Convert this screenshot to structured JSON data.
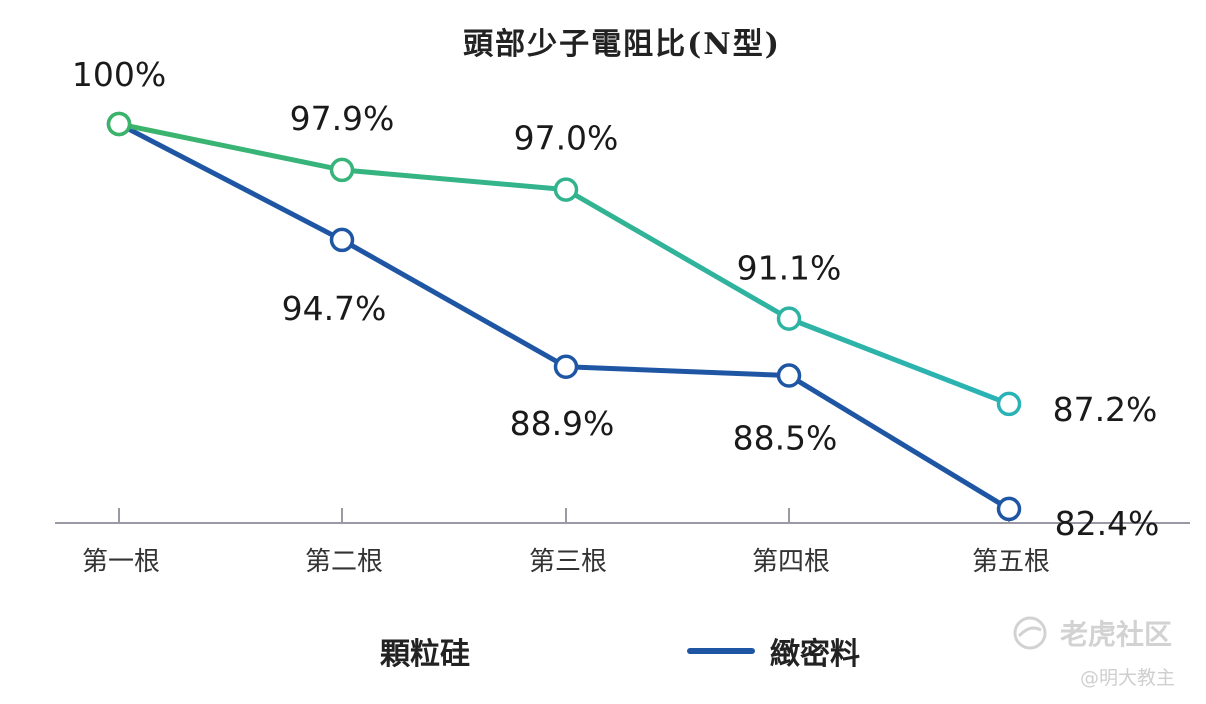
{
  "chart_data": {
    "type": "line",
    "title": "頭部少子電阻比(N型)",
    "categories": [
      "第一根",
      "第二根",
      "第三根",
      "第四根",
      "第五根"
    ],
    "ylim": [
      80,
      102
    ],
    "series": [
      {
        "name": "顆粒硅",
        "color": "#2fb3a2",
        "values": [
          100,
          97.9,
          97.0,
          91.1,
          87.2
        ],
        "labels": [
          "100%",
          "97.9%",
          "97.0%",
          "91.1%",
          "87.2%"
        ]
      },
      {
        "name": "緻密料",
        "color": "#1f56a4",
        "values": [
          100,
          94.7,
          88.9,
          88.5,
          82.4
        ],
        "labels": [
          "",
          "94.7%",
          "88.9%",
          "88.5%",
          "82.4%"
        ]
      }
    ],
    "legend": "bottom",
    "grid": false
  },
  "watermark": {
    "main": "老虎社区",
    "sub": "@明大教主"
  }
}
